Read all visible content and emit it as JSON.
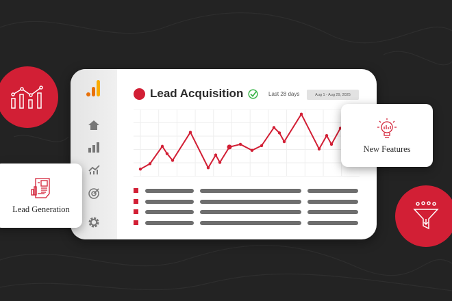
{
  "colors": {
    "accent": "#d21f35",
    "background": "#232323",
    "logo": "#f29900"
  },
  "dashboard": {
    "title": "Lead Acquisition",
    "title_status_icon": "check-circle-icon",
    "range_label": "Last 28 days",
    "date_range": "Aug 1 - Aug 29, 2025",
    "sidebar_icons": [
      "analytics-logo-icon",
      "home-icon",
      "bar-chart-icon",
      "trend-chart-icon",
      "target-icon",
      "gear-icon"
    ]
  },
  "chart_data": {
    "type": "line",
    "title": "",
    "grid": true,
    "values": [
      10,
      18,
      44,
      33,
      23,
      65,
      12,
      31,
      20,
      43,
      47,
      38,
      45,
      72,
      64,
      51,
      92,
      40,
      60,
      47,
      71,
      78
    ]
  },
  "cards": {
    "lead_generation": {
      "label": "Lead Generation",
      "icon": "report-document-icon"
    },
    "new_features": {
      "label": "New Features",
      "icon": "lightbulb-icon"
    }
  },
  "badges": {
    "left": "analytics-chart-icon",
    "right": "funnel-icon"
  }
}
